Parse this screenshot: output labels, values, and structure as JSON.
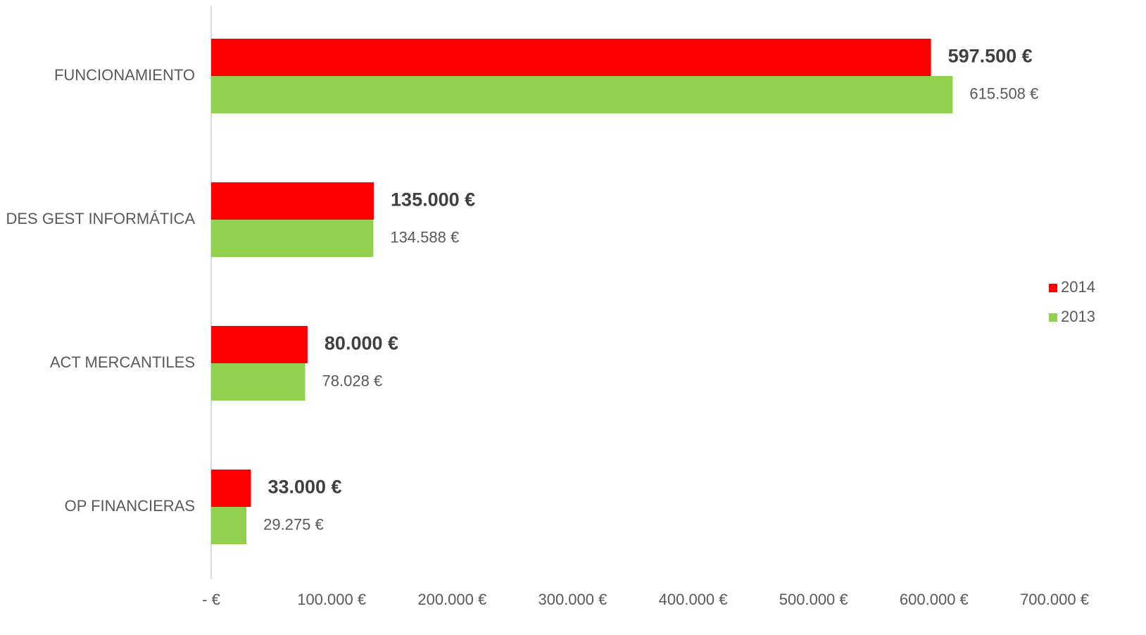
{
  "chart_data": {
    "type": "bar",
    "orientation": "horizontal",
    "categories": [
      "FUNCIONAMIENTO",
      "DES GEST INFORMÁTICA",
      "ACT MERCANTILES",
      "OP FINANCIERAS"
    ],
    "series": [
      {
        "name": "2014",
        "color": "#ff0000",
        "values": [
          597500,
          135000,
          80000,
          33000
        ],
        "value_labels": [
          "597.500 €",
          "135.000 €",
          "80.000 €",
          "33.000 €"
        ]
      },
      {
        "name": "2013",
        "color": "#92d050",
        "values": [
          615508,
          134588,
          78028,
          29275
        ],
        "value_labels": [
          "615.508 €",
          "134.588 €",
          "78.028 €",
          "29.275 €"
        ]
      }
    ],
    "xlim": [
      0,
      700000
    ],
    "xticks": [
      {
        "value": 0,
        "label": "-   €"
      },
      {
        "value": 100000,
        "label": "100.000 €"
      },
      {
        "value": 200000,
        "label": "200.000 €"
      },
      {
        "value": 300000,
        "label": "300.000 €"
      },
      {
        "value": 400000,
        "label": "400.000 €"
      },
      {
        "value": 500000,
        "label": "500.000 €"
      },
      {
        "value": 600000,
        "label": "600.000 €"
      },
      {
        "value": 700000,
        "label": "700.000 €"
      }
    ],
    "grid": false,
    "legend": "right"
  }
}
